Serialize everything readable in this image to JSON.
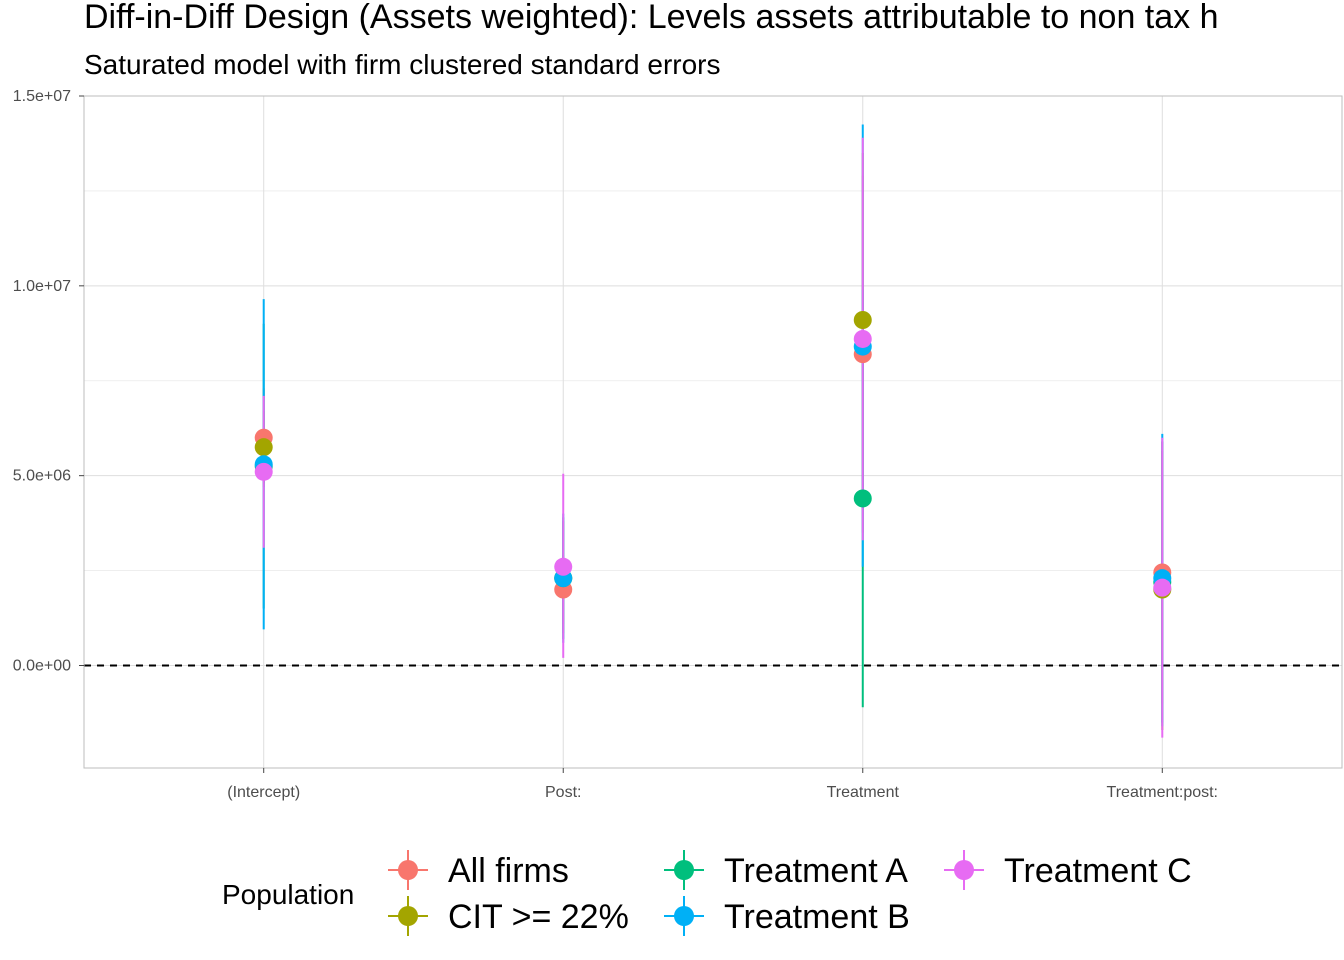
{
  "chart_data": {
    "type": "scatter",
    "title": "Diff-in-Diff Design (Assets weighted): Levels assets attributable to non tax h",
    "subtitle": "Saturated model with firm clustered standard errors",
    "xlabel": "",
    "ylabel": "",
    "categories": [
      "(Intercept)",
      "Post:",
      "Treatment",
      "Treatment:post:"
    ],
    "ylim": [
      -2700000,
      15000000
    ],
    "yticks": [
      0,
      5000000,
      10000000,
      15000000
    ],
    "ytick_labels": [
      "0.0e+00",
      "5.0e+06",
      "1.0e+07",
      "1.5e+07"
    ],
    "reference_line": 0,
    "grid": true,
    "legend": {
      "title": "Population",
      "position": "bottom"
    },
    "series": [
      {
        "name": "All firms",
        "color": "#F8766D",
        "estimate": [
          6000000,
          2000000,
          8200000,
          2450000
        ],
        "lower": [
          4700000,
          1100000,
          3500000,
          -1000000
        ],
        "upper": [
          7300000,
          2900000,
          12900000,
          5900000
        ]
      },
      {
        "name": "CIT >= 22%",
        "color": "#A3A500",
        "estimate": [
          5750000,
          2300000,
          9100000,
          2000000
        ],
        "lower": [
          4800000,
          850000,
          4300000,
          -1700000
        ],
        "upper": [
          6700000,
          3800000,
          13500000,
          5650000
        ]
      },
      {
        "name": "Treatment A",
        "color": "#00BF7D",
        "estimate": [
          5250000,
          2300000,
          4400000,
          2200000
        ],
        "lower": [
          1500000,
          700000,
          -1100000,
          -1500000
        ],
        "upper": [
          9000000,
          3900000,
          9900000,
          5900000
        ]
      },
      {
        "name": "Treatment B",
        "color": "#00B0F6",
        "estimate": [
          5300000,
          2300000,
          8400000,
          2300000
        ],
        "lower": [
          950000,
          600000,
          2600000,
          -1600000
        ],
        "upper": [
          9650000,
          4000000,
          14250000,
          6100000
        ]
      },
      {
        "name": "Treatment C",
        "color": "#E76BF3",
        "estimate": [
          5100000,
          2600000,
          8600000,
          2050000
        ],
        "lower": [
          3100000,
          200000,
          3300000,
          -1900000
        ],
        "upper": [
          7100000,
          5050000,
          13900000,
          6000000
        ]
      }
    ]
  }
}
